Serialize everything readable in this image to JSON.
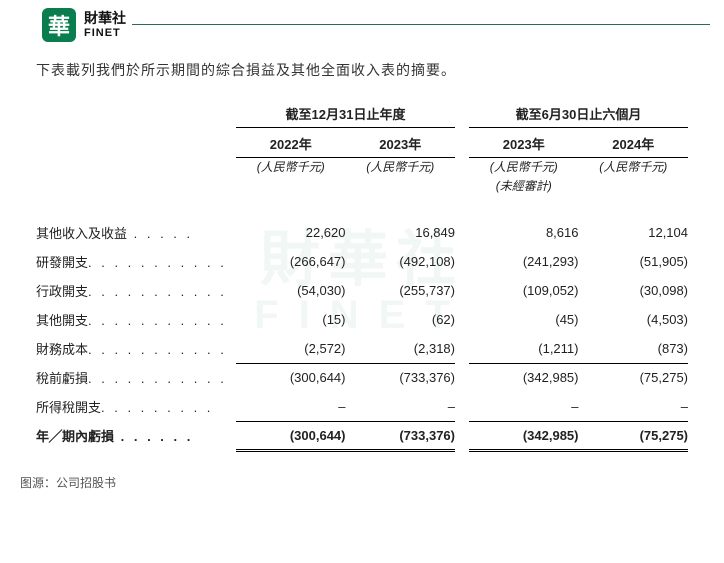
{
  "brand": {
    "cn": "財華社",
    "en": "FINET",
    "logo_char": "華"
  },
  "watermark": {
    "line1": "財華社",
    "line2": "FINET"
  },
  "intro": "下表載列我們於所示期間的綜合損益及其他全面收入表的摘要。",
  "groups": {
    "g1": "截至12月31日止年度",
    "g2": "截至6月30日止六個月"
  },
  "years": {
    "c1": "2022年",
    "c2": "2023年",
    "c3": "2023年",
    "c4": "2024年"
  },
  "unit": "(人民幣千元)",
  "unaudited": "(未經審計)",
  "rows": {
    "r1": {
      "label": "其他收入及收益",
      "dots": " . . . . .",
      "v": [
        "22,620",
        "16,849",
        "8,616",
        "12,104"
      ]
    },
    "r2": {
      "label": "研發開支",
      "dots": ". . . . . . . . . . .",
      "v": [
        "(266,647)",
        "(492,108)",
        "(241,293)",
        "(51,905)"
      ]
    },
    "r3": {
      "label": "行政開支",
      "dots": ". . . . . . . . . . .",
      "v": [
        "(54,030)",
        "(255,737)",
        "(109,052)",
        "(30,098)"
      ]
    },
    "r4": {
      "label": "其他開支",
      "dots": ". . . . . . . . . . .",
      "v": [
        "(15)",
        "(62)",
        "(45)",
        "(4,503)"
      ]
    },
    "r5": {
      "label": "財務成本",
      "dots": ". . . . . . . . . . .",
      "v": [
        "(2,572)",
        "(2,318)",
        "(1,211)",
        "(873)"
      ]
    },
    "r6": {
      "label": "稅前虧損",
      "dots": ". . . . . . . . . . .",
      "v": [
        "(300,644)",
        "(733,376)",
        "(342,985)",
        "(75,275)"
      ]
    },
    "r7": {
      "label": "所得稅開支",
      "dots": ". . . . . . . . .",
      "v": [
        "–",
        "–",
        "–",
        "–"
      ]
    },
    "r8": {
      "label": "年╱期內虧損",
      "dots": " . . . . . .",
      "v": [
        "(300,644)",
        "(733,376)",
        "(342,985)",
        "(75,275)"
      ]
    }
  },
  "source": "图源：公司招股书",
  "colors": {
    "brand_green": "#0a7d4f",
    "line": "#000000",
    "text": "#222222",
    "watermark": "rgba(0,120,70,0.06)"
  }
}
